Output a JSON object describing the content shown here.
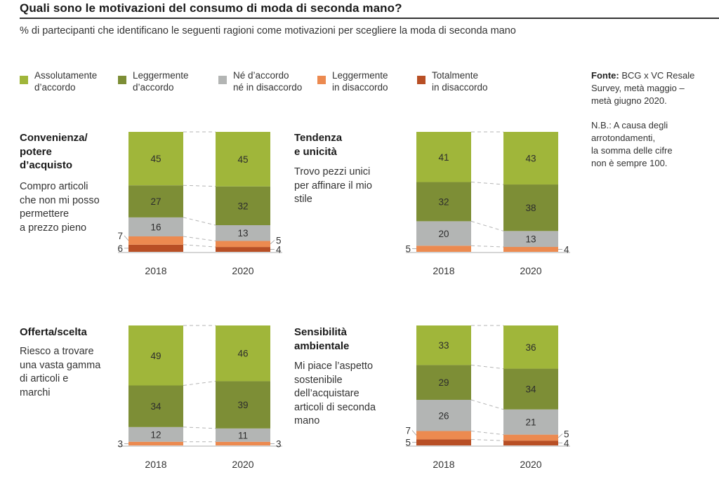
{
  "header": {
    "title": "Quali sono le motivazioni del consumo di moda di seconda mano?",
    "subtitle": "% di partecipanti che identificano le seguenti ragioni come motivazioni per scegliere la moda di seconda mano"
  },
  "legend": [
    {
      "label": "Assolutamente\nd’accordo",
      "color": "#a0b63a"
    },
    {
      "label": "Leggermente\nd’accordo",
      "color": "#7d8e36"
    },
    {
      "label": "Né d’accordo\nné in disaccordo",
      "color": "#b3b5b4"
    },
    {
      "label": "Leggermente\nin disaccordo",
      "color": "#ec8a50"
    },
    {
      "label": "Totalmente\nin disaccordo",
      "color": "#b84f25"
    }
  ],
  "notes": {
    "source_label": "Fonte:",
    "source_text": " BCG x VC Resale\nSurvey, metà maggio –\nmetà giugno 2020.",
    "nb": "N.B.: A causa degli\narrotondamenti,\nla somma delle cifre\nnon è sempre 100."
  },
  "chart_data": [
    {
      "type": "bar",
      "stacked": true,
      "title": "Convenienza/\npotere\nd’acquisto",
      "description": "Compro articoli\nche non mi posso\npermettere\na prezzo pieno",
      "categories": [
        "2018",
        "2020"
      ],
      "series": [
        {
          "name": "Assolutamente d’accordo",
          "values": [
            45,
            45
          ]
        },
        {
          "name": "Leggermente d’accordo",
          "values": [
            27,
            32
          ]
        },
        {
          "name": "Né d’accordo né in disaccordo",
          "values": [
            16,
            13
          ]
        },
        {
          "name": "Leggermente in disaccordo",
          "values": [
            7,
            5
          ]
        },
        {
          "name": "Totalmente in disaccordo",
          "values": [
            6,
            4
          ]
        }
      ],
      "ylim": [
        0,
        100
      ]
    },
    {
      "type": "bar",
      "stacked": true,
      "title": "Tendenza\ne unicità",
      "description": "Trovo pezzi unici\nper affinare il mio\nstile",
      "categories": [
        "2018",
        "2020"
      ],
      "series": [
        {
          "name": "Assolutamente d’accordo",
          "values": [
            41,
            43
          ]
        },
        {
          "name": "Leggermente d’accordo",
          "values": [
            32,
            38
          ]
        },
        {
          "name": "Né d’accordo né in disaccordo",
          "values": [
            20,
            13
          ]
        },
        {
          "name": "Leggermente in disaccordo",
          "values": [
            5,
            4
          ]
        },
        {
          "name": "Totalmente in disaccordo",
          "values": [
            0,
            0
          ]
        }
      ],
      "ylim": [
        0,
        100
      ]
    },
    {
      "type": "bar",
      "stacked": true,
      "title": "Offerta/scelta",
      "description": "Riesco a trovare\nuna vasta gamma\ndi articoli e\nmarchi",
      "categories": [
        "2018",
        "2020"
      ],
      "series": [
        {
          "name": "Assolutamente d’accordo",
          "values": [
            49,
            46
          ]
        },
        {
          "name": "Leggermente d’accordo",
          "values": [
            34,
            39
          ]
        },
        {
          "name": "Né d’accordo né in disaccordo",
          "values": [
            12,
            11
          ]
        },
        {
          "name": "Leggermente in disaccordo",
          "values": [
            3,
            3
          ]
        },
        {
          "name": "Totalmente in disaccordo",
          "values": [
            0,
            0
          ]
        }
      ],
      "ylim": [
        0,
        100
      ]
    },
    {
      "type": "bar",
      "stacked": true,
      "title": "Sensibilità\nambientale",
      "description": "Mi piace l’aspetto\nsostenibile\ndell’acquistare\narticoli di seconda\nmano",
      "categories": [
        "2018",
        "2020"
      ],
      "series": [
        {
          "name": "Assolutamente d’accordo",
          "values": [
            33,
            36
          ]
        },
        {
          "name": "Leggermente d’accordo",
          "values": [
            29,
            34
          ]
        },
        {
          "name": "Né d’accordo né in disaccordo",
          "values": [
            26,
            21
          ]
        },
        {
          "name": "Leggermente in disaccordo",
          "values": [
            7,
            5
          ]
        },
        {
          "name": "Totalmente in disaccordo",
          "values": [
            5,
            4
          ]
        }
      ],
      "ylim": [
        0,
        100
      ]
    }
  ]
}
